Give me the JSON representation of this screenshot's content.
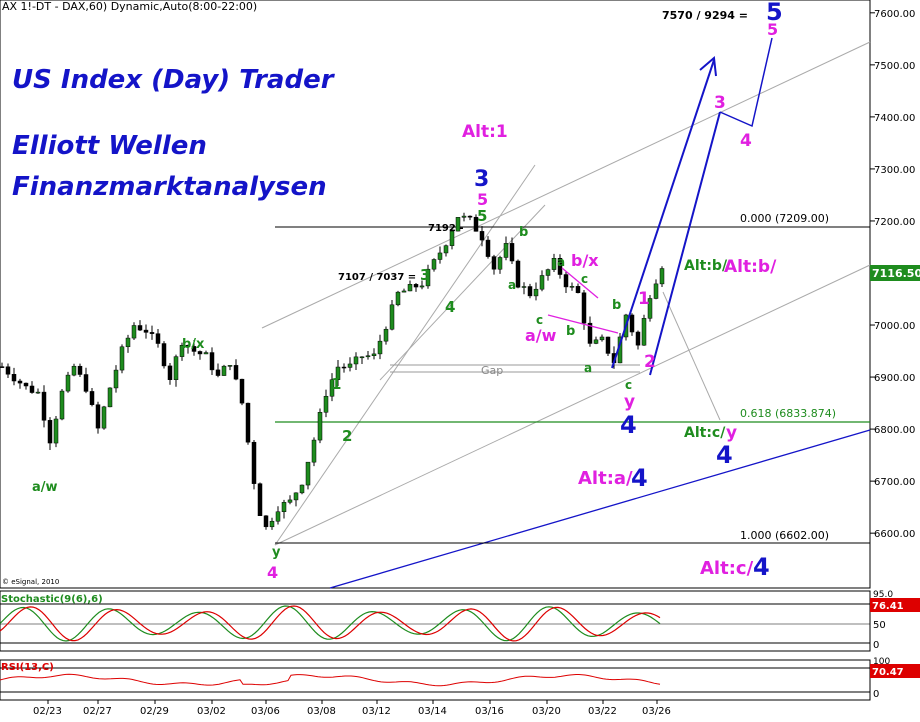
{
  "header": {
    "title": "AX 1!-DT - DAX,60) Dynamic,Auto(8:00-22:00)",
    "target_text": "7570 / 9294 ="
  },
  "branding": {
    "line1": "US Index (Day) Trader",
    "line2": "Elliott Wellen",
    "line3": "Finanzmarktanalysen"
  },
  "copyright": "© eSignal, 2010",
  "colors": {
    "blue": "#1414c8",
    "magenta": "#e020e0",
    "green": "#1e8c1e",
    "red": "#dd0000",
    "candle": "#000000"
  },
  "chart_data": {
    "type": "candlestick",
    "x_labels": [
      "02/23",
      "02/27",
      "02/29",
      "03/02",
      "03/06",
      "03/08",
      "03/12",
      "03/14",
      "03/16",
      "03/20",
      "03/22",
      "03/26"
    ],
    "y_ticks": [
      6600,
      6700,
      6800,
      6900,
      7000,
      7100,
      7200,
      7300,
      7400,
      7500,
      7600
    ],
    "ylim": [
      6510,
      7640
    ],
    "last_price": "7116.50",
    "price_path": [
      [
        0,
        6920
      ],
      [
        4,
        6880
      ],
      [
        6,
        6870
      ],
      [
        8,
        6780
      ],
      [
        10,
        6870
      ],
      [
        12,
        6920
      ],
      [
        14,
        6880
      ],
      [
        16,
        6800
      ],
      [
        18,
        6880
      ],
      [
        20,
        6950
      ],
      [
        22,
        7000
      ],
      [
        24,
        6990
      ],
      [
        26,
        6960
      ],
      [
        28,
        6900
      ],
      [
        30,
        6970
      ],
      [
        32,
        6950
      ],
      [
        34,
        6940
      ],
      [
        36,
        6900
      ],
      [
        38,
        6930
      ],
      [
        40,
        6850
      ],
      [
        42,
        6700
      ],
      [
        43,
        6640
      ],
      [
        44,
        6610
      ],
      [
        46,
        6650
      ],
      [
        48,
        6660
      ],
      [
        50,
        6700
      ],
      [
        52,
        6780
      ],
      [
        54,
        6870
      ],
      [
        56,
        6920
      ],
      [
        58,
        6920
      ],
      [
        60,
        6940
      ],
      [
        62,
        6940
      ],
      [
        64,
        7000
      ],
      [
        66,
        7060
      ],
      [
        68,
        7070
      ],
      [
        70,
        7080
      ],
      [
        72,
        7120
      ],
      [
        74,
        7160
      ],
      [
        76,
        7210
      ],
      [
        78,
        7200
      ],
      [
        80,
        7170
      ],
      [
        82,
        7110
      ],
      [
        84,
        7150
      ],
      [
        86,
        7080
      ],
      [
        88,
        7060
      ],
      [
        90,
        7090
      ],
      [
        92,
        7120
      ],
      [
        94,
        7080
      ],
      [
        96,
        7060
      ],
      [
        98,
        6960
      ],
      [
        100,
        6970
      ],
      [
        102,
        6930
      ],
      [
        104,
        7020
      ],
      [
        106,
        6960
      ],
      [
        108,
        7060
      ],
      [
        110,
        7116
      ]
    ],
    "levels": [
      {
        "label": "0.000 (7209.00)",
        "value": 7209
      },
      {
        "label": "0.618 (6833.874)",
        "value": 6834
      },
      {
        "label": "1.000 (6602.00)",
        "value": 6602
      }
    ],
    "gap_label": "Gap",
    "price_notes": [
      "7192 -",
      "7107 / 7037 ="
    ],
    "wave_labels": [
      {
        "text": "a/w",
        "color": "green"
      },
      {
        "text": "b/x",
        "color": "green"
      },
      {
        "text": "y",
        "color": "green"
      },
      {
        "text": "4",
        "color": "magenta"
      },
      {
        "text": "1",
        "color": "green"
      },
      {
        "text": "2",
        "color": "green"
      },
      {
        "text": "3",
        "color": "green"
      },
      {
        "text": "4",
        "color": "green"
      },
      {
        "text": "5",
        "color": "green"
      },
      {
        "text": "5",
        "color": "magenta"
      },
      {
        "text": "3",
        "color": "blue"
      },
      {
        "text": "Alt:1",
        "color": "magenta"
      },
      {
        "text": "b",
        "color": "green"
      },
      {
        "text": "a",
        "color": "green"
      },
      {
        "text": "c",
        "color": "green"
      },
      {
        "text": "a/w",
        "color": "magenta"
      },
      {
        "text": "b/x",
        "color": "magenta"
      },
      {
        "text": "a",
        "color": "green"
      },
      {
        "text": "c",
        "color": "green"
      },
      {
        "text": "b",
        "color": "green"
      },
      {
        "text": "a",
        "color": "green"
      },
      {
        "text": "b",
        "color": "green"
      },
      {
        "text": "c",
        "color": "green"
      },
      {
        "text": "y",
        "color": "magenta"
      },
      {
        "text": "4",
        "color": "blue"
      },
      {
        "text": "1",
        "color": "magenta"
      },
      {
        "text": "2",
        "color": "magenta"
      },
      {
        "text": "Alt:b/",
        "color": "green"
      },
      {
        "text": "Alt:b/",
        "color": "magenta"
      },
      {
        "text": "3",
        "color": "magenta"
      },
      {
        "text": "4",
        "color": "magenta"
      },
      {
        "text": "5",
        "color": "blue"
      },
      {
        "text": "5",
        "color": "magenta"
      },
      {
        "text": "Alt:c/",
        "color": "green"
      },
      {
        "text": "y",
        "color": "magenta"
      },
      {
        "text": "4",
        "color": "blue"
      },
      {
        "text": "Alt:a/",
        "color": "magenta"
      },
      {
        "text": "4",
        "color": "blue"
      },
      {
        "text": "Alt:c/",
        "color": "magenta"
      },
      {
        "text": "4",
        "color": "blue"
      }
    ]
  },
  "stochastic": {
    "title": "Stochastic(9(6),6)",
    "value": "76.41",
    "ticks": [
      "95.0",
      "50",
      "0"
    ]
  },
  "rsi": {
    "title": "RSI(13,C)",
    "value": "70.47",
    "ticks": [
      "100",
      "0"
    ]
  }
}
